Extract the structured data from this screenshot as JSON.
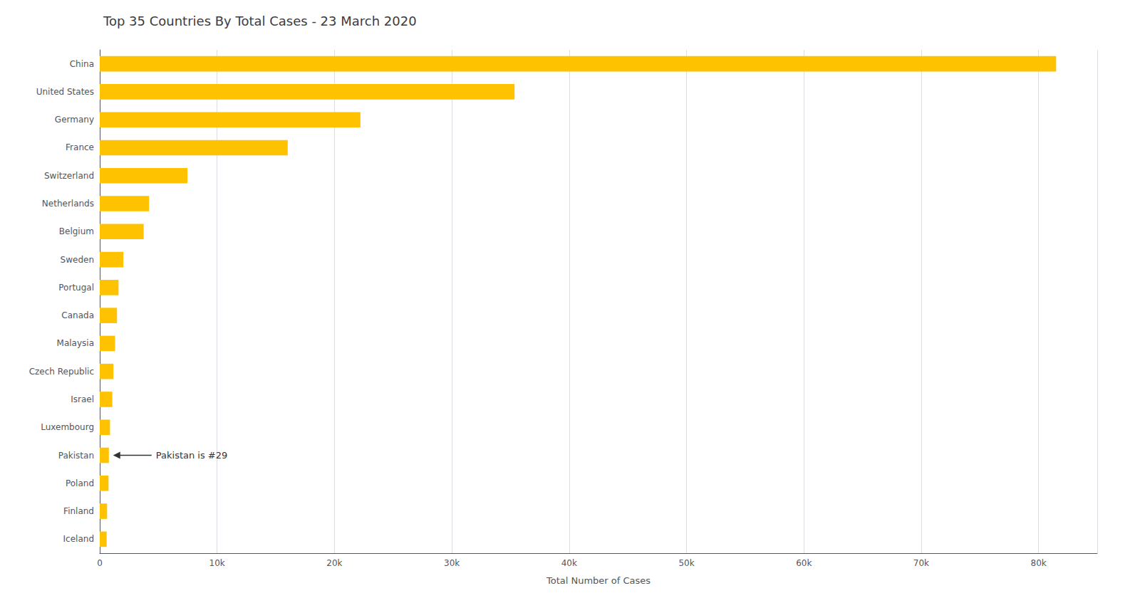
{
  "chart_data": {
    "type": "bar",
    "orientation": "horizontal",
    "title": "Top 35 Countries By Total Cases - 23 March 2020",
    "xlabel": "Total Number of Cases",
    "categories": [
      "China",
      "United States",
      "Germany",
      "France",
      "Switzerland",
      "Netherlands",
      "Belgium",
      "Sweden",
      "Portugal",
      "Canada",
      "Malaysia",
      "Czech Republic",
      "Israel",
      "Luxembourg",
      "Pakistan",
      "Poland",
      "Finland",
      "Iceland"
    ],
    "values": [
      81496,
      35345,
      22213,
      16018,
      7474,
      4204,
      3743,
      2016,
      1600,
      1470,
      1306,
      1165,
      1071,
      875,
      776,
      749,
      626,
      588
    ],
    "color": "#FFC200",
    "xlim": [
      0,
      85000
    ],
    "xticks": [
      0,
      {
        "value": 10000,
        "label": "10k"
      },
      {
        "value": 20000,
        "label": "20k"
      },
      {
        "value": 30000,
        "label": "30k"
      },
      {
        "value": 40000,
        "label": "40k"
      },
      {
        "value": 50000,
        "label": "50k"
      },
      {
        "value": 60000,
        "label": "60k"
      },
      {
        "value": 70000,
        "label": "70k"
      },
      {
        "value": 80000,
        "label": "80k"
      }
    ],
    "grid": true,
    "annotations": [
      {
        "text": "Pakistan is #29",
        "category": "Pakistan"
      }
    ]
  }
}
